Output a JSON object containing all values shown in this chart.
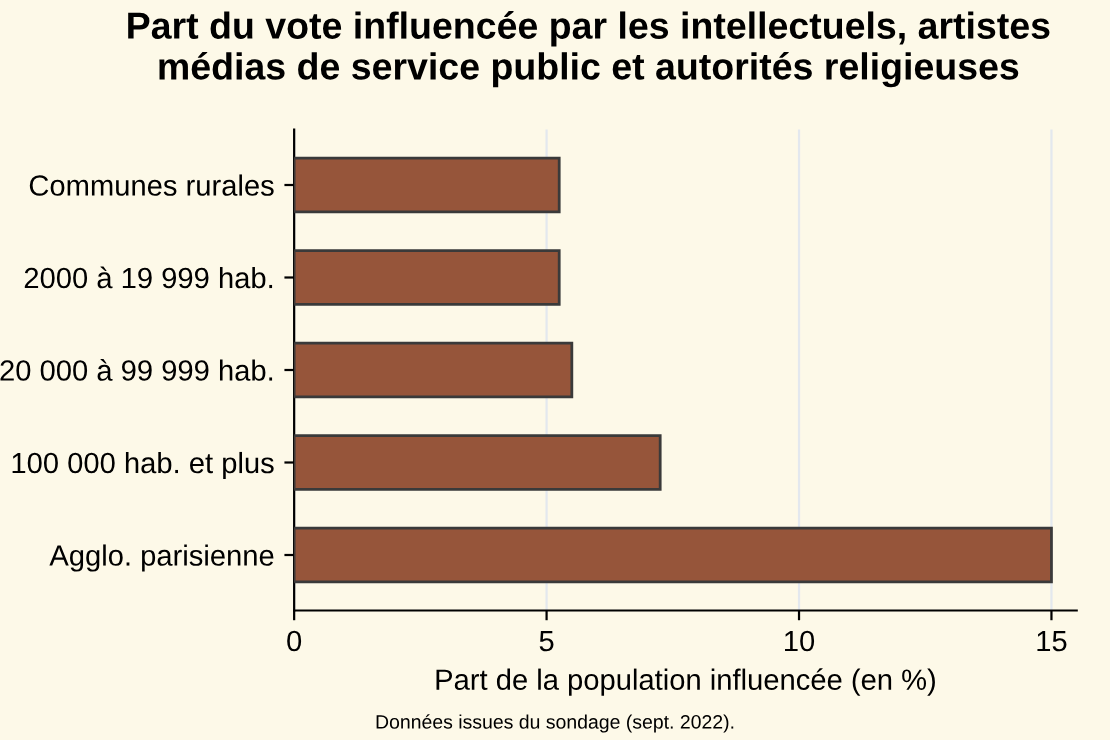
{
  "chart_data": {
    "type": "bar",
    "orientation": "horizontal",
    "title": "Part du vote influencée par les intellectuels, artistes\nmédias de service public et autorités religieuses",
    "categories": [
      "Communes rurales",
      "2000 à 19 999 hab.",
      "20 000 à 99 999 hab.",
      "100 000 hab. et plus",
      "Agglo. parisienne"
    ],
    "values": [
      5.25,
      5.25,
      5.5,
      7.25,
      15
    ],
    "color": "#96553a",
    "xlabel": "Part de la population influencée (en %)",
    "xlim": [
      0,
      15.5
    ],
    "xticks": [
      0,
      5,
      10,
      15
    ],
    "grid": "x",
    "annotations": [
      "Données issues du sondage (sept. 2022)."
    ]
  }
}
